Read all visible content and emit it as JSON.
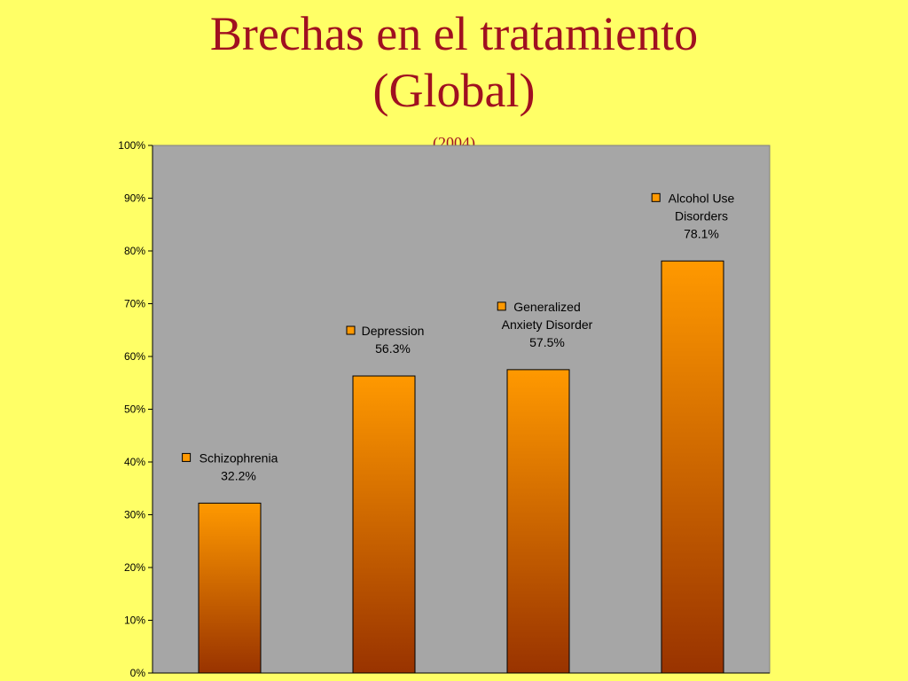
{
  "slide": {
    "title_line1": "Brechas en el tratamiento",
    "title_line2": "(Global)",
    "subtitle": "(2004)"
  },
  "colors": {
    "background": "#ffff66",
    "title": "#a01020",
    "plot_area": "#a6a6a6",
    "bar_top": "#ff9900",
    "bar_bottom": "#993300"
  },
  "chart_data": {
    "type": "bar",
    "categories": [
      "Schizophrenia",
      "Depression",
      "Generalized Anxiety Disorder",
      "Alcohol Use Disorders"
    ],
    "values": [
      32.2,
      56.3,
      57.5,
      78.1
    ],
    "data_labels": [
      [
        "Schizophrenia",
        "32.2%"
      ],
      [
        "Depression",
        "56.3%"
      ],
      [
        "Generalized",
        "Anxiety Disorder",
        "57.5%"
      ],
      [
        "Alcohol Use",
        "Disorders",
        "78.1%"
      ]
    ],
    "y_ticks": [
      "0%",
      "10%",
      "20%",
      "30%",
      "40%",
      "50%",
      "60%",
      "70%",
      "80%",
      "90%",
      "100%"
    ],
    "ylim": [
      0,
      100
    ],
    "grid": false,
    "legend": "none"
  }
}
